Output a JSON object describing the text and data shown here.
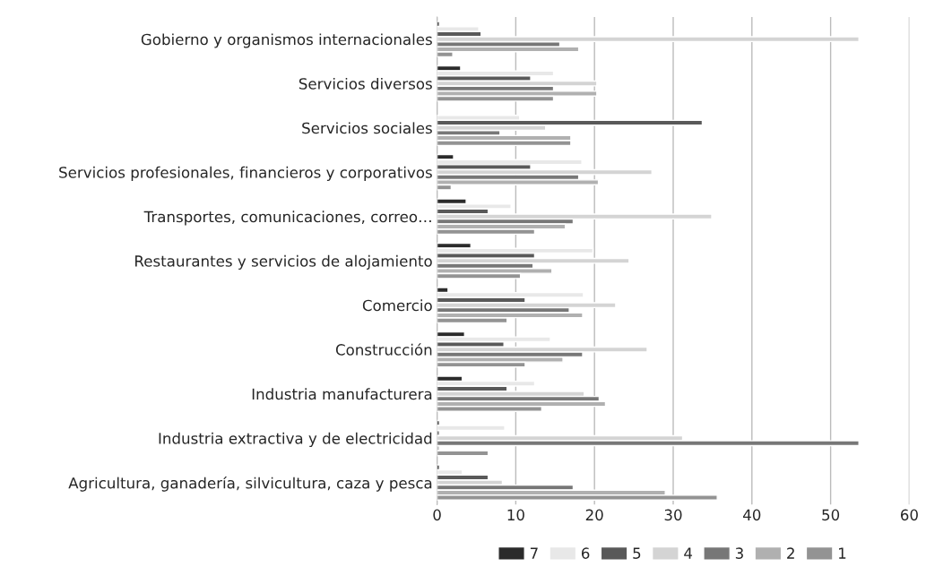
{
  "chart_data": {
    "type": "bar",
    "orientation": "horizontal",
    "categories": [
      "Gobierno y organismos internacionales",
      "Servicios diversos",
      "Servicios sociales",
      "Servicios profesionales, financieros y corporativos",
      "Transportes, comunicaciones, correo…",
      "Restaurantes y servicios de alojamiento",
      "Comercio",
      "Construcción",
      "Industria manufacturera",
      "Industria extractiva y de electricidad",
      "Agricultura, ganadería, silvicultura, caza y pesca"
    ],
    "series": [
      {
        "name": "7",
        "color": "#2b2b2b",
        "values": [
          0.3,
          3.0,
          null,
          2.1,
          3.7,
          4.3,
          1.4,
          3.5,
          3.2,
          0.3,
          0.3
        ]
      },
      {
        "name": "6",
        "color": "#e8e8e8",
        "values": [
          5.3,
          14.8,
          10.5,
          18.4,
          9.4,
          19.8,
          18.6,
          14.4,
          12.4,
          8.6,
          3.2
        ]
      },
      {
        "name": "5",
        "color": "#595959",
        "values": [
          5.6,
          11.9,
          33.7,
          11.9,
          6.5,
          12.4,
          11.2,
          8.5,
          8.9,
          0.3,
          6.5
        ]
      },
      {
        "name": "4",
        "color": "#d4d4d4",
        "values": [
          53.6,
          20.3,
          13.8,
          27.3,
          34.9,
          24.4,
          22.7,
          26.7,
          18.7,
          31.2,
          8.3
        ]
      },
      {
        "name": "3",
        "color": "#777777",
        "values": [
          15.6,
          14.8,
          8.0,
          18.0,
          17.3,
          12.2,
          16.8,
          18.5,
          20.6,
          53.6,
          17.3
        ]
      },
      {
        "name": "2",
        "color": "#b0b0b0",
        "values": [
          18.0,
          20.3,
          17.0,
          20.5,
          16.3,
          14.6,
          18.5,
          16.0,
          21.4,
          0.3,
          29.0
        ]
      },
      {
        "name": "1",
        "color": "#939393",
        "values": [
          2.0,
          14.8,
          17.0,
          1.8,
          12.4,
          10.6,
          8.9,
          11.2,
          13.3,
          6.5,
          35.6
        ]
      }
    ],
    "xlim": [
      0,
      60
    ],
    "xticks": [
      0,
      10,
      20,
      30,
      40,
      50,
      60
    ],
    "grid": "x",
    "legend": "bottom"
  }
}
